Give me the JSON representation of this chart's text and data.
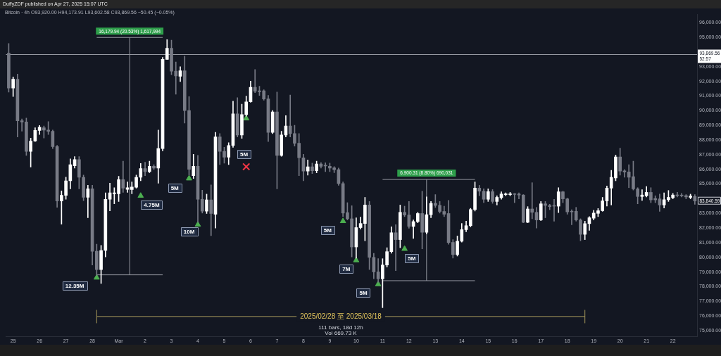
{
  "chart_data": {
    "type": "candlestick",
    "title": "DuffyZDF published on Apr 27, 2025 15:07 UTC",
    "subtitle": "Bitcoin · 4h  O93,920.00 H94,173.91 L93,602.58 C93,869.56 −50.45 (−0.05%)",
    "xlim": [
      "2025-02-24T17:30",
      "2025-03-22T22:00"
    ],
    "ylim": [
      74620,
      96560
    ],
    "xticks": [
      {
        "value": "2025-02-25",
        "label": "25"
      },
      {
        "value": "2025-02-26",
        "label": "26"
      },
      {
        "value": "2025-02-27",
        "label": "27"
      },
      {
        "value": "2025-02-28",
        "label": "28"
      },
      {
        "value": "2025-03-01",
        "label": "Mar"
      },
      {
        "value": "2025-03-02",
        "label": "2"
      },
      {
        "value": "2025-03-03",
        "label": "3"
      },
      {
        "value": "2025-03-04",
        "label": "4"
      },
      {
        "value": "2025-03-05",
        "label": "5"
      },
      {
        "value": "2025-03-06",
        "label": "6"
      },
      {
        "value": "2025-03-07",
        "label": "7"
      },
      {
        "value": "2025-03-08",
        "label": "8"
      },
      {
        "value": "2025-03-09",
        "label": "9"
      },
      {
        "value": "2025-03-10",
        "label": "10"
      },
      {
        "value": "2025-03-11",
        "label": "11"
      },
      {
        "value": "2025-03-12",
        "label": "12"
      },
      {
        "value": "2025-03-13",
        "label": "13"
      },
      {
        "value": "2025-03-14",
        "label": "14"
      },
      {
        "value": "2025-03-15",
        "label": "15"
      },
      {
        "value": "2025-03-16",
        "label": "16"
      },
      {
        "value": "2025-03-17",
        "label": "17"
      },
      {
        "value": "2025-03-18",
        "label": "18"
      },
      {
        "value": "2025-03-19",
        "label": "19"
      },
      {
        "value": "2025-03-20",
        "label": "20"
      },
      {
        "value": "2025-03-21",
        "label": "21"
      },
      {
        "value": "2025-03-22",
        "label": "22"
      }
    ],
    "yticks": [
      {
        "value": 75000,
        "label": "75,000.00"
      },
      {
        "value": 76000,
        "label": "76,000.00"
      },
      {
        "value": 77000,
        "label": "77,000.00"
      },
      {
        "value": 78000,
        "label": "78,000.00"
      },
      {
        "value": 79000,
        "label": "79,000.00"
      },
      {
        "value": 80000,
        "label": "80,000.00"
      },
      {
        "value": 81000,
        "label": "81,000.00"
      },
      {
        "value": 82000,
        "label": "82,000.00"
      },
      {
        "value": 83000,
        "label": "83,000.00"
      },
      {
        "value": 85000,
        "label": "85,000.00"
      },
      {
        "value": 86000,
        "label": "86,000.00"
      },
      {
        "value": 87000,
        "label": "87,000.00"
      },
      {
        "value": 88000,
        "label": "88,000.00"
      },
      {
        "value": 89000,
        "label": "89,000.00"
      },
      {
        "value": 90000,
        "label": "90,000.00"
      },
      {
        "value": 91000,
        "label": "91,000.00"
      },
      {
        "value": 92000,
        "label": "92,000.00"
      },
      {
        "value": 93000,
        "label": "93,000.00"
      },
      {
        "value": 95000,
        "label": "95,000.00"
      },
      {
        "value": 96000,
        "label": "96,000.00"
      }
    ],
    "series": [
      {
        "x": [
          "2025-02-24T20:00",
          "2025-02-25T00:00",
          "2025-02-25T04:00",
          "2025-02-25T08:00",
          "2025-02-25T12:00",
          "2025-02-25T16:00",
          "2025-02-25T20:00",
          "2025-02-26T00:00",
          "2025-02-26T04:00",
          "2025-02-26T08:00",
          "2025-02-26T12:00",
          "2025-02-26T16:00",
          "2025-02-26T20:00",
          "2025-02-27T00:00",
          "2025-02-27T04:00",
          "2025-02-27T08:00",
          "2025-02-27T12:00",
          "2025-02-27T16:00",
          "2025-02-27T20:00",
          "2025-02-28T00:00",
          "2025-02-28T04:00",
          "2025-02-28T08:00",
          "2025-02-28T12:00",
          "2025-02-28T16:00",
          "2025-02-28T20:00",
          "2025-03-01T00:00",
          "2025-03-01T04:00",
          "2025-03-01T08:00",
          "2025-03-01T12:00",
          "2025-03-01T16:00",
          "2025-03-01T20:00",
          "2025-03-02T00:00",
          "2025-03-02T04:00",
          "2025-03-02T08:00",
          "2025-03-02T12:00",
          "2025-03-02T16:00",
          "2025-03-02T20:00",
          "2025-03-03T00:00",
          "2025-03-03T04:00",
          "2025-03-03T08:00",
          "2025-03-03T12:00",
          "2025-03-03T16:00",
          "2025-03-03T20:00",
          "2025-03-04T00:00",
          "2025-03-04T04:00",
          "2025-03-04T08:00",
          "2025-03-04T12:00",
          "2025-03-04T16:00",
          "2025-03-04T20:00",
          "2025-03-05T00:00",
          "2025-03-05T04:00",
          "2025-03-05T08:00",
          "2025-03-05T12:00",
          "2025-03-05T16:00",
          "2025-03-05T20:00",
          "2025-03-06T00:00",
          "2025-03-06T04:00",
          "2025-03-06T08:00",
          "2025-03-06T12:00",
          "2025-03-06T16:00",
          "2025-03-06T20:00",
          "2025-03-07T00:00",
          "2025-03-07T04:00",
          "2025-03-07T08:00",
          "2025-03-07T12:00",
          "2025-03-07T16:00",
          "2025-03-07T20:00",
          "2025-03-08T00:00",
          "2025-03-08T04:00",
          "2025-03-08T08:00",
          "2025-03-08T12:00",
          "2025-03-08T16:00",
          "2025-03-08T20:00",
          "2025-03-09T00:00",
          "2025-03-09T04:00",
          "2025-03-09T08:00",
          "2025-03-09T12:00",
          "2025-03-09T16:00",
          "2025-03-09T20:00",
          "2025-03-10T00:00",
          "2025-03-10T04:00",
          "2025-03-10T08:00",
          "2025-03-10T12:00",
          "2025-03-10T16:00",
          "2025-03-10T20:00",
          "2025-03-11T00:00",
          "2025-03-11T04:00",
          "2025-03-11T08:00",
          "2025-03-11T12:00",
          "2025-03-11T16:00",
          "2025-03-11T20:00",
          "2025-03-12T00:00",
          "2025-03-12T04:00",
          "2025-03-12T08:00",
          "2025-03-12T12:00",
          "2025-03-12T16:00",
          "2025-03-12T20:00",
          "2025-03-13T00:00",
          "2025-03-13T04:00",
          "2025-03-13T08:00",
          "2025-03-13T12:00",
          "2025-03-13T16:00",
          "2025-03-13T20:00",
          "2025-03-14T00:00",
          "2025-03-14T04:00",
          "2025-03-14T08:00",
          "2025-03-14T12:00",
          "2025-03-14T16:00",
          "2025-03-14T20:00",
          "2025-03-15T00:00",
          "2025-03-15T04:00",
          "2025-03-15T08:00",
          "2025-03-15T12:00",
          "2025-03-15T16:00",
          "2025-03-15T20:00",
          "2025-03-16T00:00",
          "2025-03-16T04:00",
          "2025-03-16T08:00",
          "2025-03-16T12:00",
          "2025-03-16T16:00",
          "2025-03-16T20:00",
          "2025-03-17T00:00",
          "2025-03-17T04:00",
          "2025-03-17T08:00",
          "2025-03-17T12:00",
          "2025-03-17T16:00",
          "2025-03-17T20:00",
          "2025-03-18T00:00",
          "2025-03-18T04:00",
          "2025-03-18T08:00",
          "2025-03-18T12:00",
          "2025-03-18T16:00",
          "2025-03-18T20:00",
          "2025-03-19T00:00",
          "2025-03-19T04:00",
          "2025-03-19T08:00",
          "2025-03-19T12:00",
          "2025-03-19T16:00",
          "2025-03-19T20:00",
          "2025-03-20T00:00",
          "2025-03-20T04:00",
          "2025-03-20T08:00",
          "2025-03-20T12:00",
          "2025-03-20T16:00",
          "2025-03-20T20:00",
          "2025-03-21T00:00",
          "2025-03-21T04:00",
          "2025-03-21T08:00",
          "2025-03-21T12:00",
          "2025-03-21T16:00",
          "2025-03-21T20:00",
          "2025-03-22T00:00",
          "2025-03-22T04:00",
          "2025-03-22T08:00",
          "2025-03-22T12:00",
          "2025-03-22T16:00",
          "2025-03-22T20:00"
        ],
        "ohlc": [
          [
            93920,
            94580,
            91270,
            91540
          ],
          [
            91540,
            92300,
            90960,
            92140
          ],
          [
            92140,
            92490,
            88210,
            89310
          ],
          [
            89310,
            89430,
            88600,
            89230
          ],
          [
            89230,
            89500,
            86950,
            87220
          ],
          [
            87220,
            88130,
            86160,
            87930
          ],
          [
            87930,
            88840,
            87890,
            88650
          ],
          [
            88650,
            88990,
            88370,
            88870
          ],
          [
            88840,
            88960,
            88130,
            88680
          ],
          [
            88680,
            89260,
            88370,
            88590
          ],
          [
            88590,
            88680,
            87420,
            87550
          ],
          [
            87550,
            87640,
            83410,
            83840
          ],
          [
            83840,
            84530,
            82260,
            84230
          ],
          [
            84230,
            85470,
            83960,
            85220
          ],
          [
            85220,
            86710,
            84670,
            86320
          ],
          [
            86240,
            86870,
            86090,
            86670
          ],
          [
            86670,
            86870,
            84670,
            85460
          ],
          [
            85460,
            85610,
            83870,
            84090
          ],
          [
            84090,
            84910,
            82700,
            84670
          ],
          [
            84670,
            84910,
            79480,
            80420
          ],
          [
            80420,
            80900,
            78770,
            79170
          ],
          [
            79170,
            80820,
            78220,
            80470
          ],
          [
            80470,
            84400,
            80030,
            83960
          ],
          [
            83960,
            85060,
            83170,
            84400
          ],
          [
            84340,
            84750,
            83650,
            84400
          ],
          [
            84340,
            85530,
            83810,
            85300
          ],
          [
            85300,
            86560,
            84430,
            84720
          ],
          [
            84640,
            85140,
            84430,
            84750
          ],
          [
            84620,
            85140,
            84340,
            84800
          ],
          [
            84780,
            85610,
            84720,
            85460
          ],
          [
            85460,
            86400,
            85220,
            86050
          ],
          [
            86050,
            86480,
            85570,
            85850
          ],
          [
            85850,
            86560,
            85770,
            86210
          ],
          [
            86210,
            86320,
            85990,
            86090
          ],
          [
            86090,
            88680,
            85060,
            87420
          ],
          [
            87420,
            93630,
            87260,
            93500
          ],
          [
            93500,
            94840,
            93490,
            94260
          ],
          [
            94260,
            94810,
            92450,
            92690
          ],
          [
            92690,
            93320,
            91120,
            92370
          ],
          [
            92340,
            93000,
            91980,
            92720
          ],
          [
            92720,
            93710,
            89150,
            90010
          ],
          [
            90010,
            90960,
            85610,
            86000
          ],
          [
            85570,
            87030,
            85380,
            86210
          ],
          [
            86210,
            86950,
            82390,
            83960
          ],
          [
            83960,
            84580,
            83020,
            83150
          ],
          [
            83150,
            84310,
            82990,
            83920
          ],
          [
            83920,
            84940,
            81480,
            82990
          ],
          [
            82940,
            88520,
            82000,
            88210
          ],
          [
            88210,
            88440,
            86320,
            87230
          ],
          [
            87230,
            87500,
            86420,
            86830
          ],
          [
            86830,
            87820,
            86320,
            87630
          ],
          [
            87630,
            90650,
            87500,
            89780
          ],
          [
            89780,
            90880,
            88210,
            88340
          ],
          [
            88340,
            90440,
            88110,
            89730
          ],
          [
            89730,
            90990,
            89620,
            90600
          ],
          [
            90600,
            92010,
            90570,
            91590
          ],
          [
            91590,
            92800,
            91230,
            91320
          ],
          [
            91350,
            91670,
            91040,
            91290
          ],
          [
            91350,
            91430,
            90710,
            90800
          ],
          [
            90800,
            91040,
            87890,
            88520
          ],
          [
            88520,
            90010,
            88440,
            89910
          ],
          [
            89910,
            91270,
            84670,
            86950
          ],
          [
            86950,
            88600,
            86890,
            88340
          ],
          [
            88340,
            89660,
            88210,
            88960
          ],
          [
            88960,
            91070,
            88210,
            88440
          ],
          [
            88440,
            89000,
            87590,
            87780
          ],
          [
            87780,
            88440,
            85570,
            86790
          ],
          [
            86790,
            87030,
            85220,
            85880
          ],
          [
            85880,
            86640,
            85610,
            86170
          ],
          [
            86170,
            86420,
            85710,
            85910
          ],
          [
            85910,
            86560,
            85760,
            86370
          ],
          [
            86370,
            86460,
            86090,
            86210
          ],
          [
            86240,
            86450,
            85850,
            86230
          ],
          [
            86210,
            86420,
            85850,
            86090
          ],
          [
            86100,
            86190,
            85770,
            85980
          ],
          [
            85980,
            86090,
            84910,
            85030
          ],
          [
            85030,
            85140,
            82780,
            83020
          ],
          [
            83050,
            83730,
            82550,
            82630
          ],
          [
            82630,
            83520,
            80030,
            80710
          ],
          [
            80710,
            82700,
            79950,
            82030
          ],
          [
            82030,
            82740,
            81930,
            82310
          ],
          [
            82310,
            84090,
            81130,
            83570
          ],
          [
            83570,
            83810,
            79170,
            80000
          ],
          [
            80000,
            80280,
            78540,
            79010
          ],
          [
            79010,
            79910,
            78300,
            78540
          ],
          [
            78540,
            79910,
            76570,
            79480
          ],
          [
            79480,
            80660,
            79340,
            80390
          ],
          [
            80390,
            82080,
            80280,
            81680
          ],
          [
            81680,
            82230,
            79090,
            81210
          ],
          [
            81210,
            83570,
            80660,
            83070
          ],
          [
            83070,
            83490,
            82780,
            82890
          ],
          [
            82890,
            83810,
            81980,
            82110
          ],
          [
            82110,
            82550,
            81290,
            82440
          ],
          [
            82440,
            83070,
            82360,
            82990
          ],
          [
            82990,
            84510,
            80580,
            81710
          ],
          [
            81710,
            84120,
            81600,
            82910
          ],
          [
            82910,
            83810,
            82700,
            83680
          ],
          [
            83680,
            84280,
            83400,
            83540
          ],
          [
            83550,
            83810,
            83020,
            83130
          ],
          [
            83130,
            83490,
            82780,
            82940
          ],
          [
            82990,
            83880,
            80900,
            81010
          ],
          [
            81020,
            81210,
            79950,
            80190
          ],
          [
            80190,
            81460,
            80090,
            81100
          ],
          [
            81100,
            82310,
            81040,
            81890
          ],
          [
            81890,
            82470,
            81750,
            82160
          ],
          [
            82160,
            83340,
            82080,
            83260
          ],
          [
            83260,
            85140,
            83160,
            84720
          ],
          [
            84720,
            84910,
            84200,
            84510
          ],
          [
            84510,
            84670,
            83730,
            83960
          ],
          [
            83960,
            84670,
            83810,
            84480
          ],
          [
            84480,
            84620,
            83680,
            83810
          ],
          [
            83810,
            84200,
            83570,
            84090
          ],
          [
            84070,
            84470,
            83960,
            84320
          ],
          [
            84280,
            84400,
            84200,
            84320
          ],
          [
            84280,
            84430,
            84200,
            84320
          ],
          [
            84320,
            84360,
            83730,
            84290
          ],
          [
            84320,
            84400,
            83990,
            84250
          ],
          [
            84250,
            84280,
            82360,
            82390
          ],
          [
            82390,
            83460,
            82360,
            83300
          ],
          [
            83300,
            85090,
            82630,
            83070
          ],
          [
            83070,
            83410,
            82000,
            82550
          ],
          [
            82550,
            83810,
            82500,
            83650
          ],
          [
            83650,
            83810,
            82700,
            83540
          ],
          [
            83540,
            83620,
            83250,
            83460
          ],
          [
            83540,
            83960,
            82470,
            83490
          ],
          [
            83490,
            84750,
            83050,
            84470
          ],
          [
            84470,
            84510,
            83730,
            83990
          ],
          [
            83990,
            84040,
            82940,
            83100
          ],
          [
            83140,
            83250,
            82230,
            83100
          ],
          [
            83140,
            83410,
            82470,
            82550
          ],
          [
            82550,
            82630,
            81130,
            81570
          ],
          [
            81570,
            82470,
            81210,
            82300
          ],
          [
            82300,
            82780,
            81840,
            82700
          ],
          [
            82670,
            83210,
            82550,
            83020
          ],
          [
            83000,
            83330,
            82780,
            83180
          ],
          [
            83180,
            84090,
            83140,
            83850
          ],
          [
            83850,
            84870,
            83490,
            84720
          ],
          [
            84720,
            85930,
            83570,
            85460
          ],
          [
            85410,
            86980,
            85220,
            86840
          ],
          [
            86840,
            87450,
            85610,
            85880
          ],
          [
            85900,
            85980,
            85460,
            85820
          ],
          [
            85820,
            86320,
            84750,
            85460
          ],
          [
            85500,
            86560,
            84590,
            84670
          ],
          [
            84670,
            84750,
            83650,
            84150
          ],
          [
            84150,
            84620,
            83880,
            84250
          ],
          [
            84200,
            84830,
            84120,
            84430
          ],
          [
            84430,
            84750,
            83730,
            83920
          ],
          [
            84010,
            84200,
            83730,
            83920
          ],
          [
            83990,
            84310,
            83140,
            83570
          ],
          [
            83570,
            84400,
            83360,
            83930
          ],
          [
            83930,
            84560,
            83810,
            84090
          ],
          [
            84070,
            84360,
            83990,
            84250
          ],
          [
            84250,
            84430,
            84120,
            84210
          ],
          [
            84250,
            84360,
            84120,
            84200
          ],
          [
            84210,
            84280,
            83990,
            84120
          ],
          [
            84090,
            84310,
            83990,
            84180
          ],
          [
            84150,
            84280,
            83620,
            83840.59
          ]
        ],
        "colors": [
          "#787b86",
          "#ffffff",
          "#787b86",
          "#787b86",
          "#787b86",
          "#ffffff",
          "#ffffff",
          "#ffffff",
          "#787b86",
          "#787b86",
          "#787b86",
          "#787b86",
          "#ffffff",
          "#ffffff",
          "#ffffff",
          "#ffffff",
          "#787b86",
          "#787b86",
          "#ffffff",
          "#787b86",
          "#787b86",
          "#ffffff",
          "#ffffff",
          "#ffffff",
          "#ffffff",
          "#ffffff",
          "#787b86",
          "#ffffff",
          "#ffffff",
          "#ffffff",
          "#ffffff",
          "#787b86",
          "#ffffff",
          "#787b86",
          "#ffffff",
          "#ffffff",
          "#ffffff",
          "#787b86",
          "#787b86",
          "#ffffff",
          "#787b86",
          "#787b86",
          "#ffffff",
          "#787b86",
          "#787b86",
          "#ffffff",
          "#787b86",
          "#ffffff",
          "#787b86",
          "#787b86",
          "#ffffff",
          "#ffffff",
          "#787b86",
          "#ffffff",
          "#ffffff",
          "#ffffff",
          "#787b86",
          "#787b86",
          "#787b86",
          "#787b86",
          "#ffffff",
          "#787b86",
          "#ffffff",
          "#ffffff",
          "#787b86",
          "#787b86",
          "#787b86",
          "#787b86",
          "#ffffff",
          "#787b86",
          "#ffffff",
          "#787b86",
          "#787b86",
          "#787b86",
          "#787b86",
          "#787b86",
          "#787b86",
          "#787b86",
          "#787b86",
          "#ffffff",
          "#ffffff",
          "#ffffff",
          "#787b86",
          "#787b86",
          "#787b86",
          "#ffffff",
          "#ffffff",
          "#ffffff",
          "#787b86",
          "#ffffff",
          "#787b86",
          "#787b86",
          "#ffffff",
          "#ffffff",
          "#787b86",
          "#ffffff",
          "#ffffff",
          "#787b86",
          "#787b86",
          "#787b86",
          "#787b86",
          "#787b86",
          "#ffffff",
          "#ffffff",
          "#ffffff",
          "#ffffff",
          "#ffffff",
          "#787b86",
          "#787b86",
          "#ffffff",
          "#787b86",
          "#ffffff",
          "#ffffff",
          "#ffffff",
          "#ffffff",
          "#787b86",
          "#787b86",
          "#787b86",
          "#ffffff",
          "#787b86",
          "#787b86",
          "#ffffff",
          "#787b86",
          "#787b86",
          "#787b86",
          "#ffffff",
          "#787b86",
          "#787b86",
          "#787b86",
          "#787b86",
          "#787b86",
          "#ffffff",
          "#ffffff",
          "#ffffff",
          "#ffffff",
          "#ffffff",
          "#ffffff",
          "#ffffff",
          "#ffffff",
          "#787b86",
          "#787b86",
          "#787b86",
          "#787b86",
          "#787b86",
          "#ffffff",
          "#ffffff",
          "#787b86",
          "#787b86",
          "#787b86",
          "#ffffff",
          "#ffffff",
          "#ffffff",
          "#787b86",
          "#787b86",
          "#787b86",
          "#ffffff",
          "#787b86"
        ]
      },
      {
        "type": "line",
        "color": "#9598a1",
        "x": [
          "2025-02-28T04:00",
          "2025-03-02T16:00"
        ],
        "values": [
          94990,
          94990
        ]
      },
      {
        "type": "line",
        "color": "#9598a1",
        "x": [
          "2025-03-01T10:00",
          "2025-03-01T10:00"
        ],
        "values": [
          78810,
          94990
        ]
      },
      {
        "type": "line",
        "color": "#9598a1",
        "x": [
          "2025-02-28T04:00",
          "2025-03-02T16:00"
        ],
        "values": [
          78810,
          78810
        ]
      },
      {
        "type": "line",
        "color": "#9598a1",
        "x": [
          "2025-03-11T00:00",
          "2025-03-14T12:00"
        ],
        "values": [
          85310,
          85310
        ]
      },
      {
        "type": "line",
        "color": "#9598a1",
        "x": [
          "2025-03-12T16:00",
          "2025-03-12T16:00"
        ],
        "values": [
          78410,
          85310
        ]
      },
      {
        "type": "line",
        "color": "#9598a1",
        "x": [
          "2025-03-11T00:00",
          "2025-03-14T12:00"
        ],
        "values": [
          78410,
          78410
        ]
      },
      {
        "type": "line",
        "color": "#a5985a",
        "x": [
          "2025-02-28T04:00",
          "2025-03-18T16:00"
        ],
        "values": [
          75970,
          75970
        ]
      },
      {
        "type": "line",
        "color": "#a5985a",
        "x": [
          "2025-02-28T04:00",
          "2025-02-28T04:00"
        ],
        "values": [
          75510,
          76420
        ]
      },
      {
        "type": "line",
        "color": "#a5985a",
        "x": [
          "2025-03-18T16:00",
          "2025-03-18T16:00"
        ],
        "values": [
          75510,
          76420
        ]
      },
      {
        "type": "scatter",
        "color": "#4caf50",
        "marker": "triangle",
        "x": [
          "2025-02-28T04:00",
          "2025-03-01T20:00",
          "2025-03-03T16:00",
          "2025-03-04T00:00",
          "2025-03-05T20:00",
          "2025-03-09T12:00",
          "2025-03-10T00:00",
          "2025-03-10T20:00",
          "2025-03-11T20:00"
        ],
        "values": [
          78620,
          84200,
          85380,
          82230,
          89470,
          82470,
          79800,
          78170,
          80580
        ]
      },
      {
        "type": "scatter",
        "color": "#f23645",
        "marker": "cross",
        "x": [
          "2025-03-05T20:00"
        ],
        "values": [
          86180
        ]
      }
    ],
    "ref_lines": [
      {
        "axis": "y",
        "value": 93869.56,
        "label": "93,869.56\n52:57",
        "color": "#9598a1"
      }
    ],
    "annotations": [
      {
        "text": "16,179.94 (20.53%) 1,617,994",
        "x": "2025-03-01T10:00",
        "y": 94990
      },
      {
        "text": "6,900.31 (8.80%) 690,031",
        "x": "2025-03-12T16:00",
        "y": 85310
      },
      {
        "text": "2025/02/28 至 2025/03/18",
        "x": "2025-03-09T10:00",
        "y": 75970
      },
      "111 bars, 18d 12h",
      "Vol 669.73 K",
      {
        "text": "12.35M",
        "x": "2025-02-27T08:00",
        "y": 78070
      },
      {
        "text": "4.75M",
        "x": "2025-03-02T06:00",
        "y": 83590
      },
      {
        "text": "5M",
        "x": "2025-03-03T03:00",
        "y": 84720
      },
      {
        "text": "10M",
        "x": "2025-03-03T16:00",
        "y": 81750
      },
      {
        "text": "5M",
        "x": "2025-03-05T18:00",
        "y": 87030
      },
      {
        "text": "5M",
        "x": "2025-03-08T22:00",
        "y": 81840
      },
      {
        "text": "7M",
        "x": "2025-03-09T15:00",
        "y": 79200
      },
      {
        "text": "5M",
        "x": "2025-03-10T06:30",
        "y": 77590
      },
      {
        "text": "5M",
        "x": "2025-03-12T02:30",
        "y": 79950
      },
      {
        "text": "83,840.59",
        "y": 83840.59
      }
    ]
  }
}
